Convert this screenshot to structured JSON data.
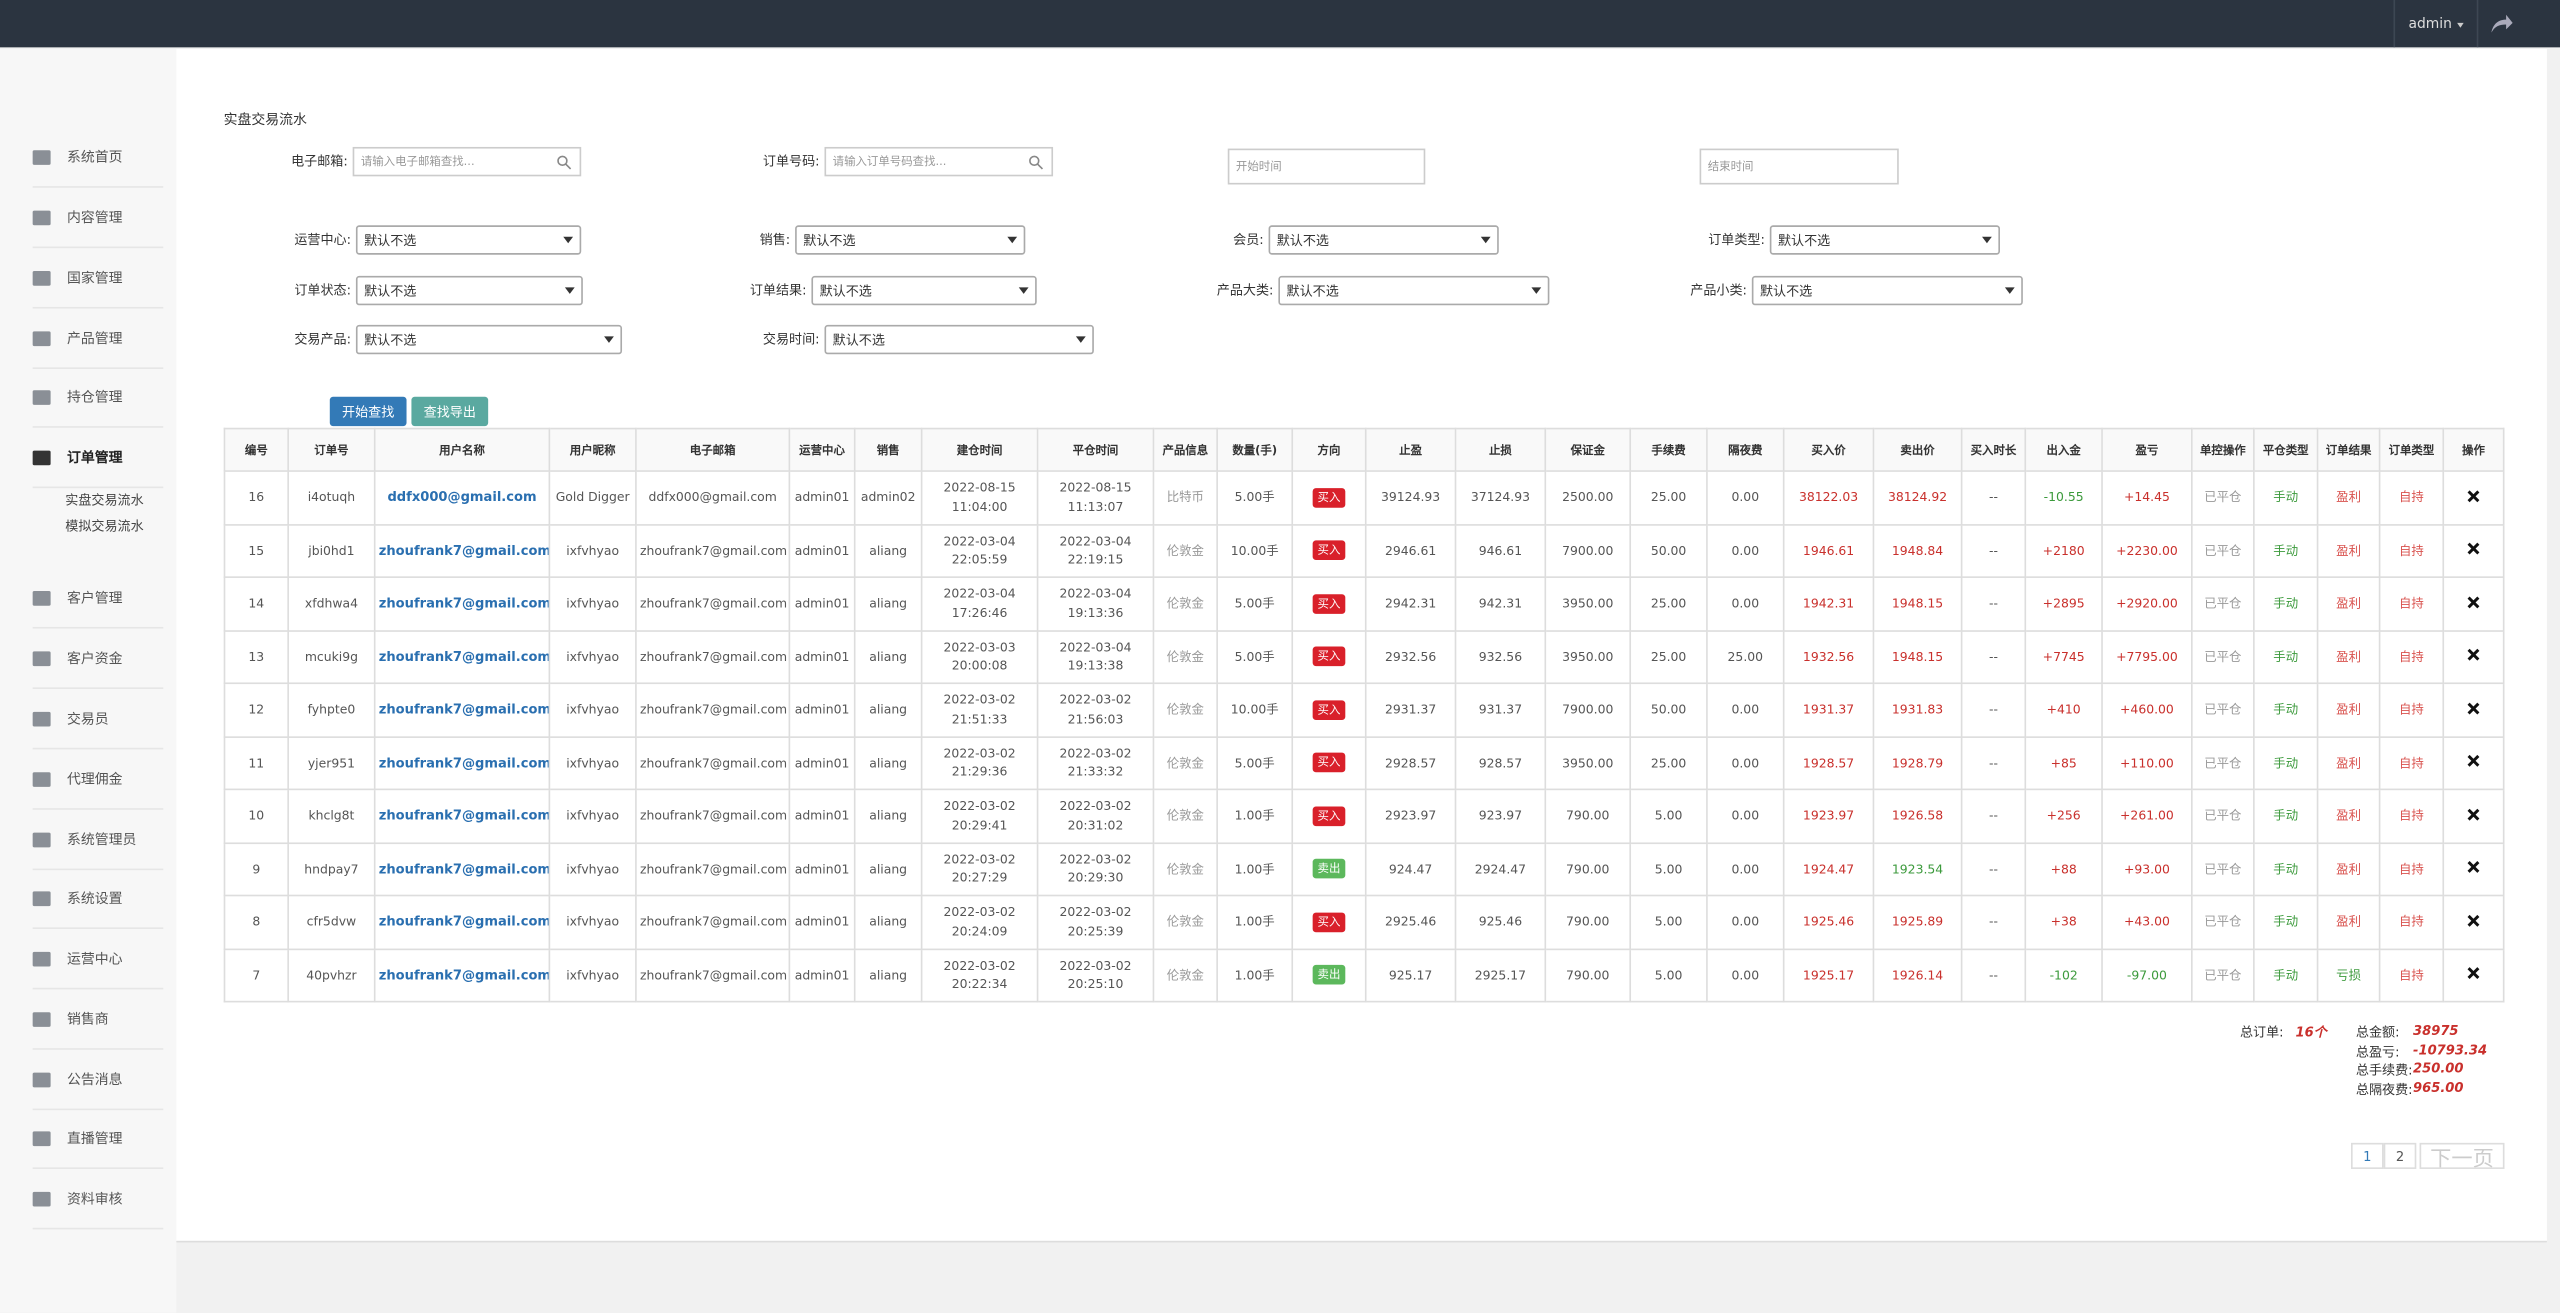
{
  "topbar": {
    "user": "admin"
  },
  "sidebar": {
    "items": [
      "系统首页",
      "内容管理",
      "国家管理",
      "产品管理",
      "持仓管理",
      "订单管理",
      "客户管理",
      "客户资金",
      "交易员",
      "代理佣金",
      "系统管理员",
      "系统设置",
      "运营中心",
      "销售商",
      "公告消息",
      "直播管理",
      "资料审核"
    ],
    "submenu": [
      "实盘交易流水",
      "模拟交易流水"
    ]
  },
  "page_title": "实盘交易流水",
  "filters": [
    {
      "label": "电子邮箱:",
      "placeholder": "请输入电子邮箱查找..."
    },
    {
      "label": "订单号码:",
      "placeholder": "请输入订单号码查找..."
    },
    {
      "placeholder": "开始时间"
    },
    {
      "placeholder": "结束时间"
    },
    {
      "label": "运营中心:",
      "value": "默认不选"
    },
    {
      "label": "销售:",
      "value": "默认不选"
    },
    {
      "label": "会员:",
      "value": "默认不选"
    },
    {
      "label": "订单类型:",
      "value": "默认不选"
    },
    {
      "label": "订单状态:",
      "value": "默认不选"
    },
    {
      "label": "订单结果:",
      "value": "默认不选"
    },
    {
      "label": "产品大类:",
      "value": "默认不选"
    },
    {
      "label": "产品小类:",
      "value": "默认不选"
    },
    {
      "label": "交易产品:",
      "value": "默认不选"
    },
    {
      "label": "交易时间:",
      "value": "默认不选"
    }
  ],
  "buttons": [
    "开始查找",
    "查找导出"
  ],
  "table": {
    "columns": [
      "编号",
      "订单号",
      "用户名称",
      "用户昵称",
      "电子邮箱",
      "运营中心",
      "销售",
      "建仓时间",
      "平仓时间",
      "产品信息",
      "数量(手)",
      "方向",
      "止盈",
      "止损",
      "保证金",
      "手续费",
      "隔夜费",
      "买入价",
      "卖出价",
      "买入时长",
      "出入金",
      "盈亏",
      "单控操作",
      "平仓类型",
      "订单结果",
      "订单类型",
      "操作"
    ],
    "rows": [
      [
        "16",
        "i4otuqh",
        "ddfx000@gmail.com",
        "Gold Digger",
        "ddfx000@gmail.com",
        "admin01",
        "admin02",
        "2022-08-15 11:04:00",
        "2022-08-15 11:13:07",
        "比特币",
        "5.00手",
        "买入",
        "39124.93",
        "37124.93",
        "2500.00",
        "25.00",
        "0.00",
        "38122.03",
        "38124.92",
        "--",
        "-10.55",
        "+14.45",
        "已平仓",
        "手动",
        "盈利",
        "自持"
      ],
      [
        "15",
        "jbi0hd1",
        "zhoufrank7@gmail.com",
        "ixfvhyao",
        "zhoufrank7@gmail.com",
        "admin01",
        "aliang",
        "2022-03-04 22:05:59",
        "2022-03-04 22:19:15",
        "伦敦金",
        "10.00手",
        "买入",
        "2946.61",
        "946.61",
        "7900.00",
        "50.00",
        "0.00",
        "1946.61",
        "1948.84",
        "--",
        "+2180",
        "+2230.00",
        "已平仓",
        "手动",
        "盈利",
        "自持"
      ],
      [
        "14",
        "xfdhwa4",
        "zhoufrank7@gmail.com",
        "ixfvhyao",
        "zhoufrank7@gmail.com",
        "admin01",
        "aliang",
        "2022-03-04 17:26:46",
        "2022-03-04 19:13:36",
        "伦敦金",
        "5.00手",
        "买入",
        "2942.31",
        "942.31",
        "3950.00",
        "25.00",
        "0.00",
        "1942.31",
        "1948.15",
        "--",
        "+2895",
        "+2920.00",
        "已平仓",
        "手动",
        "盈利",
        "自持"
      ],
      [
        "13",
        "mcuki9g",
        "zhoufrank7@gmail.com",
        "ixfvhyao",
        "zhoufrank7@gmail.com",
        "admin01",
        "aliang",
        "2022-03-03 20:00:08",
        "2022-03-04 19:13:38",
        "伦敦金",
        "5.00手",
        "买入",
        "2932.56",
        "932.56",
        "3950.00",
        "25.00",
        "25.00",
        "1932.56",
        "1948.15",
        "--",
        "+7745",
        "+7795.00",
        "已平仓",
        "手动",
        "盈利",
        "自持"
      ],
      [
        "12",
        "fyhpte0",
        "zhoufrank7@gmail.com",
        "ixfvhyao",
        "zhoufrank7@gmail.com",
        "admin01",
        "aliang",
        "2022-03-02 21:51:33",
        "2022-03-02 21:56:03",
        "伦敦金",
        "10.00手",
        "买入",
        "2931.37",
        "931.37",
        "7900.00",
        "50.00",
        "0.00",
        "1931.37",
        "1931.83",
        "--",
        "+410",
        "+460.00",
        "已平仓",
        "手动",
        "盈利",
        "自持"
      ],
      [
        "11",
        "yjer951",
        "zhoufrank7@gmail.com",
        "ixfvhyao",
        "zhoufrank7@gmail.com",
        "admin01",
        "aliang",
        "2022-03-02 21:29:36",
        "2022-03-02 21:33:32",
        "伦敦金",
        "5.00手",
        "买入",
        "2928.57",
        "928.57",
        "3950.00",
        "25.00",
        "0.00",
        "1928.57",
        "1928.79",
        "--",
        "+85",
        "+110.00",
        "已平仓",
        "手动",
        "盈利",
        "自持"
      ],
      [
        "10",
        "khclg8t",
        "zhoufrank7@gmail.com",
        "ixfvhyao",
        "zhoufrank7@gmail.com",
        "admin01",
        "aliang",
        "2022-03-02 20:29:41",
        "2022-03-02 20:31:02",
        "伦敦金",
        "1.00手",
        "买入",
        "2923.97",
        "923.97",
        "790.00",
        "5.00",
        "0.00",
        "1923.97",
        "1926.58",
        "--",
        "+256",
        "+261.00",
        "已平仓",
        "手动",
        "盈利",
        "自持"
      ],
      [
        "9",
        "hndpay7",
        "zhoufrank7@gmail.com",
        "ixfvhyao",
        "zhoufrank7@gmail.com",
        "admin01",
        "aliang",
        "2022-03-02 20:27:29",
        "2022-03-02 20:29:30",
        "伦敦金",
        "1.00手",
        "卖出",
        "924.47",
        "2924.47",
        "790.00",
        "5.00",
        "0.00",
        "1924.47",
        "1923.54",
        "--",
        "+88",
        "+93.00",
        "已平仓",
        "手动",
        "盈利",
        "自持"
      ],
      [
        "8",
        "cfr5dvw",
        "zhoufrank7@gmail.com",
        "ixfvhyao",
        "zhoufrank7@gmail.com",
        "admin01",
        "aliang",
        "2022-03-02 20:24:09",
        "2022-03-02 20:25:39",
        "伦敦金",
        "1.00手",
        "买入",
        "2925.46",
        "925.46",
        "790.00",
        "5.00",
        "0.00",
        "1925.46",
        "1925.89",
        "--",
        "+38",
        "+43.00",
        "已平仓",
        "手动",
        "盈利",
        "自持"
      ],
      [
        "7",
        "40pvhzr",
        "zhoufrank7@gmail.com",
        "ixfvhyao",
        "zhoufrank7@gmail.com",
        "admin01",
        "aliang",
        "2022-03-02 20:22:34",
        "2022-03-02 20:25:10",
        "伦敦金",
        "1.00手",
        "卖出",
        "925.17",
        "2925.17",
        "790.00",
        "5.00",
        "0.00",
        "1925.17",
        "1926.14",
        "--",
        "-102",
        "-97.00",
        "已平仓",
        "手动",
        "亏损",
        "自持"
      ]
    ]
  },
  "summary": {
    "orders": {
      "label": "总订单:",
      "value": "16个"
    },
    "totals": [
      {
        "label": "总金额:",
        "value": "38975"
      },
      {
        "label": "总盈亏:",
        "value": "-10793.34"
      },
      {
        "label": "总手续费:",
        "value": "250.00"
      },
      {
        "label": "总隔夜费:",
        "value": "965.00"
      }
    ]
  },
  "pagination": [
    "1",
    "2",
    "下一页"
  ]
}
